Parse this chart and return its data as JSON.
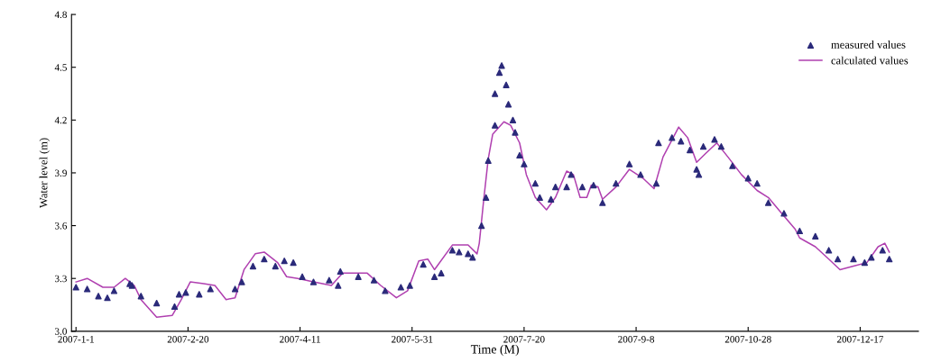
{
  "chart_data": {
    "type": "scatter",
    "xlabel": "Time (M)",
    "ylabel": "Water level (m)",
    "xlim": [
      "2006-12-30",
      "2008-01-12"
    ],
    "ylim": [
      3.0,
      4.8
    ],
    "xticks": [
      {
        "value": "2007-01-01",
        "label": "2007-1-1"
      },
      {
        "value": "2007-02-20",
        "label": "2007-2-20"
      },
      {
        "value": "2007-04-11",
        "label": "2007-4-11"
      },
      {
        "value": "2007-05-31",
        "label": "2007-5-31"
      },
      {
        "value": "2007-07-20",
        "label": "2007-7-20"
      },
      {
        "value": "2007-09-08",
        "label": "2007-9-8"
      },
      {
        "value": "2007-10-28",
        "label": "2007-10-28"
      },
      {
        "value": "2007-12-17",
        "label": "2007-12-17"
      }
    ],
    "yticks": [
      {
        "value": 3.0,
        "label": "3.0"
      },
      3.3,
      3.6,
      3.9,
      4.2,
      4.5,
      4.8
    ],
    "grid": false,
    "legend": "top right",
    "series": [
      {
        "name": "measured values",
        "marker": "triangle",
        "color": "#2b2a7a",
        "x": [
          "2007-01-01",
          "2007-01-06",
          "2007-01-11",
          "2007-01-15",
          "2007-01-18",
          "2007-01-25",
          "2007-01-26",
          "2007-01-30",
          "2007-02-06",
          "2007-02-14",
          "2007-02-16",
          "2007-02-19",
          "2007-02-25",
          "2007-03-02",
          "2007-03-13",
          "2007-03-16",
          "2007-03-21",
          "2007-03-26",
          "2007-03-31",
          "2007-04-04",
          "2007-04-08",
          "2007-04-12",
          "2007-04-17",
          "2007-04-24",
          "2007-04-28",
          "2007-04-29",
          "2007-05-07",
          "2007-05-14",
          "2007-05-19",
          "2007-05-26",
          "2007-05-30",
          "2007-06-05",
          "2007-06-10",
          "2007-06-13",
          "2007-06-18",
          "2007-06-21",
          "2007-06-25",
          "2007-06-27",
          "2007-07-01",
          "2007-07-03",
          "2007-07-04",
          "2007-07-07",
          "2007-07-07",
          "2007-07-09",
          "2007-07-10",
          "2007-07-12",
          "2007-07-13",
          "2007-07-15",
          "2007-07-16",
          "2007-07-18",
          "2007-07-20",
          "2007-07-25",
          "2007-07-27",
          "2007-08-01",
          "2007-08-03",
          "2007-08-08",
          "2007-08-10",
          "2007-08-15",
          "2007-08-20",
          "2007-08-24",
          "2007-08-30",
          "2007-09-05",
          "2007-09-10",
          "2007-09-17",
          "2007-09-18",
          "2007-09-24",
          "2007-09-28",
          "2007-10-02",
          "2007-10-05",
          "2007-10-06",
          "2007-10-08",
          "2007-10-13",
          "2007-10-16",
          "2007-10-21",
          "2007-10-28",
          "2007-11-01",
          "2007-11-06",
          "2007-11-13",
          "2007-11-20",
          "2007-11-27",
          "2007-12-03",
          "2007-12-07",
          "2007-12-14",
          "2007-12-19",
          "2007-12-22",
          "2007-12-27",
          "2007-12-30"
        ],
        "values": [
          3.25,
          3.24,
          3.2,
          3.19,
          3.23,
          3.27,
          3.26,
          3.2,
          3.16,
          3.14,
          3.21,
          3.22,
          3.21,
          3.24,
          3.24,
          3.28,
          3.37,
          3.41,
          3.37,
          3.4,
          3.39,
          3.31,
          3.28,
          3.29,
          3.26,
          3.34,
          3.31,
          3.29,
          3.23,
          3.25,
          3.26,
          3.38,
          3.31,
          3.33,
          3.46,
          3.45,
          3.44,
          3.42,
          3.6,
          3.76,
          3.97,
          4.17,
          4.35,
          4.47,
          4.51,
          4.4,
          4.29,
          4.2,
          4.13,
          4.0,
          3.95,
          3.84,
          3.76,
          3.75,
          3.82,
          3.82,
          3.89,
          3.82,
          3.83,
          3.73,
          3.84,
          3.95,
          3.89,
          3.84,
          4.07,
          4.1,
          4.08,
          4.03,
          3.92,
          3.89,
          4.05,
          4.09,
          4.05,
          3.94,
          3.87,
          3.84,
          3.73,
          3.67,
          3.57,
          3.54,
          3.46,
          3.41,
          3.41,
          3.39,
          3.42,
          3.46,
          3.41
        ]
      },
      {
        "name": "calculated values",
        "type": "line",
        "marker": "none",
        "color": "#b040b0",
        "x": [
          "2007-01-01",
          "2007-01-06",
          "2007-01-13",
          "2007-01-18",
          "2007-01-23",
          "2007-01-27",
          "2007-01-30",
          "2007-02-06",
          "2007-02-13",
          "2007-02-17",
          "2007-02-21",
          "2007-02-27",
          "2007-03-04",
          "2007-03-09",
          "2007-03-13",
          "2007-03-17",
          "2007-03-22",
          "2007-03-26",
          "2007-04-01",
          "2007-04-05",
          "2007-04-10",
          "2007-04-17",
          "2007-04-25",
          "2007-04-30",
          "2007-05-11",
          "2007-05-17",
          "2007-05-24",
          "2007-05-29",
          "2007-06-03",
          "2007-06-07",
          "2007-06-10",
          "2007-06-18",
          "2007-06-25",
          "2007-06-29",
          "2007-06-30",
          "2007-07-02",
          "2007-07-04",
          "2007-07-06",
          "2007-07-11",
          "2007-07-14",
          "2007-07-18",
          "2007-07-21",
          "2007-07-25",
          "2007-07-30",
          "2007-08-03",
          "2007-08-08",
          "2007-08-11",
          "2007-08-14",
          "2007-08-17",
          "2007-08-19",
          "2007-08-22",
          "2007-08-24",
          "2007-08-30",
          "2007-09-05",
          "2007-09-11",
          "2007-09-16",
          "2007-09-20",
          "2007-09-27",
          "2007-10-01",
          "2007-10-05",
          "2007-10-09",
          "2007-10-14",
          "2007-10-19",
          "2007-10-25",
          "2007-11-01",
          "2007-11-06",
          "2007-11-12",
          "2007-11-18",
          "2007-11-20",
          "2007-11-27",
          "2007-12-03",
          "2007-12-08",
          "2007-12-14",
          "2007-12-20",
          "2007-12-25",
          "2007-12-28",
          "2007-12-30"
        ],
        "values": [
          3.28,
          3.3,
          3.25,
          3.25,
          3.3,
          3.26,
          3.18,
          3.08,
          3.09,
          3.18,
          3.28,
          3.27,
          3.26,
          3.18,
          3.19,
          3.35,
          3.44,
          3.45,
          3.39,
          3.31,
          3.3,
          3.28,
          3.26,
          3.33,
          3.33,
          3.26,
          3.19,
          3.23,
          3.4,
          3.41,
          3.35,
          3.49,
          3.49,
          3.44,
          3.5,
          3.75,
          3.98,
          4.12,
          4.19,
          4.17,
          4.07,
          3.89,
          3.76,
          3.69,
          3.76,
          3.91,
          3.89,
          3.76,
          3.76,
          3.83,
          3.82,
          3.75,
          3.82,
          3.92,
          3.87,
          3.81,
          3.99,
          4.16,
          4.1,
          3.96,
          4.01,
          4.07,
          3.99,
          3.89,
          3.8,
          3.76,
          3.67,
          3.58,
          3.53,
          3.48,
          3.41,
          3.35,
          3.37,
          3.39,
          3.48,
          3.5,
          3.45
        ]
      }
    ]
  }
}
